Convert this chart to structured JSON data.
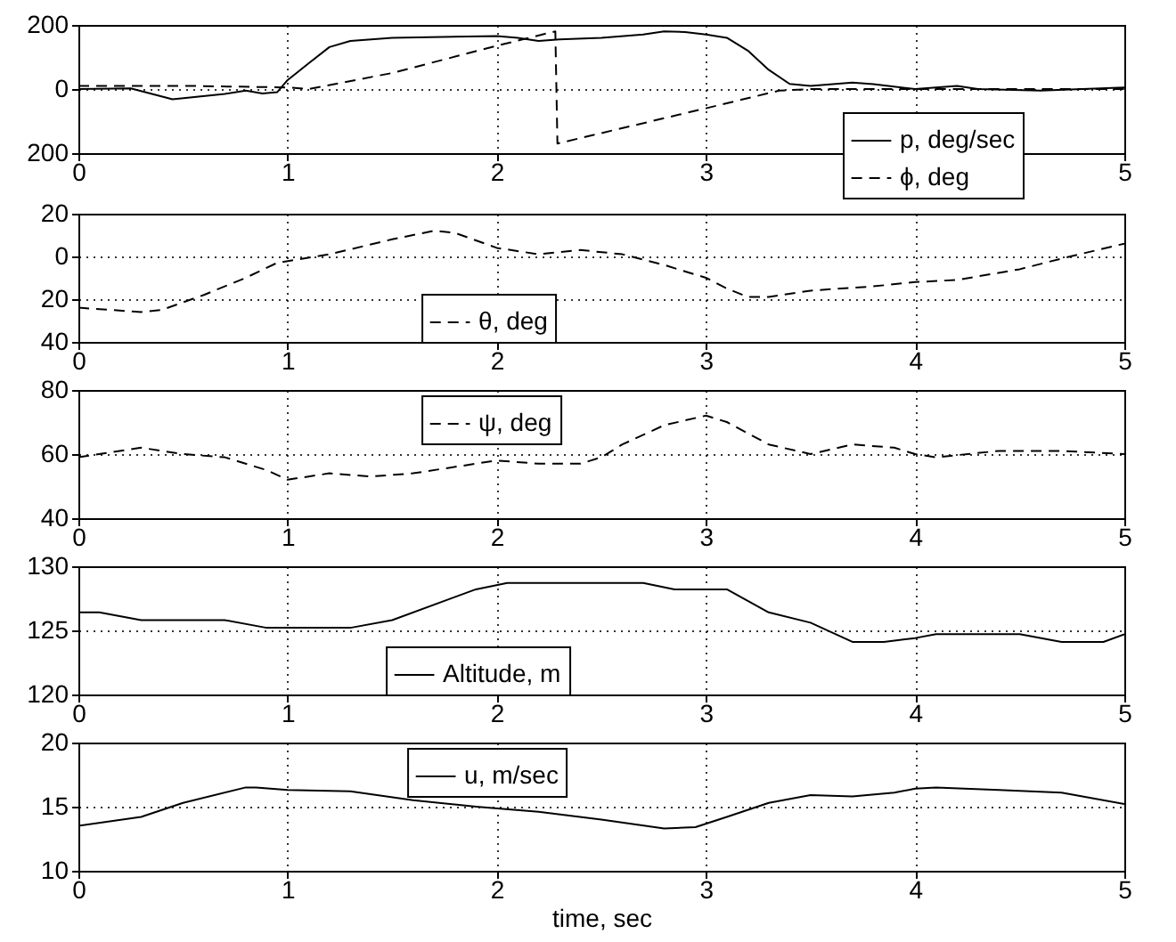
{
  "chart_data": [
    {
      "type": "line",
      "x": [
        0,
        0.25,
        0.45,
        0.7,
        0.8,
        0.88,
        0.95,
        1.0,
        1.1,
        1.2,
        1.3,
        1.5,
        2.0,
        2.1,
        2.2,
        2.3,
        2.5,
        2.7,
        2.8,
        2.9,
        3.0,
        3.1,
        3.2,
        3.3,
        3.4,
        3.5,
        3.7,
        3.8,
        4.0,
        4.2,
        4.3,
        4.6,
        4.8,
        5.0
      ],
      "series": [
        {
          "name": "p, deg/sec",
          "color": "#000000",
          "line_style": "solid",
          "values": [
            0,
            2,
            -32,
            -15,
            -5,
            -14,
            -10,
            28,
            80,
            131,
            150,
            160,
            165,
            160,
            150,
            155,
            160,
            170,
            180,
            178,
            170,
            160,
            120,
            60,
            16,
            10,
            20,
            15,
            0,
            10,
            0,
            -5,
            0,
            5
          ]
        },
        {
          "name": "ϕ, deg",
          "color": "#000000",
          "line_style": "dashed",
          "x": [
            0,
            0.5,
            1.0,
            1.1,
            1.5,
            2.0,
            2.28,
            2.29,
            3.0,
            3.35,
            3.5,
            5.0
          ],
          "values": [
            10,
            10,
            5,
            0,
            50,
            135,
            180,
            -170,
            -60,
            -5,
            0,
            0
          ]
        }
      ],
      "xlim": [
        0,
        5
      ],
      "xticks": [
        0,
        1,
        2,
        3,
        {
          "value": 4,
          "label": null
        },
        5
      ],
      "ylim": [
        -200,
        200
      ],
      "yticks": [
        {
          "value": -200,
          "label": "200"
        },
        0,
        200
      ],
      "grid": true,
      "legend": "bottom right"
    },
    {
      "type": "line",
      "x": [
        0,
        0.3,
        0.4,
        0.6,
        0.8,
        0.95,
        1.2,
        1.5,
        1.7,
        1.8,
        2.0,
        2.2,
        2.4,
        2.6,
        2.8,
        3.0,
        3.1,
        3.2,
        3.3,
        3.5,
        3.8,
        4.0,
        4.2,
        4.5,
        4.7,
        5.0
      ],
      "series": [
        {
          "name": "θ, deg",
          "color": "#000000",
          "line_style": "dashed",
          "values": [
            -24,
            -26,
            -25,
            -18,
            -10,
            -3,
            1,
            8,
            12,
            11,
            4,
            1,
            3,
            1,
            -4,
            -10,
            -15,
            -19,
            -19,
            -16,
            -14,
            -12,
            -11,
            -6,
            -1,
            6
          ]
        }
      ],
      "xlim": [
        0,
        5
      ],
      "xticks": [
        0,
        1,
        2,
        3,
        4,
        5
      ],
      "ylim": [
        -40,
        20
      ],
      "yticks": [
        {
          "value": -40,
          "label": "40"
        },
        {
          "value": -20,
          "label": "20"
        },
        0,
        20
      ],
      "grid": true,
      "legend": "bottom"
    },
    {
      "type": "line",
      "x": [
        0,
        0.3,
        0.5,
        0.7,
        0.9,
        1.0,
        1.2,
        1.4,
        1.6,
        2.0,
        2.2,
        2.4,
        2.5,
        2.6,
        2.8,
        3.0,
        3.1,
        3.3,
        3.5,
        3.7,
        3.9,
        4.0,
        4.1,
        4.4,
        4.7,
        5.0
      ],
      "series": [
        {
          "name": "ψ, deg",
          "color": "#000000",
          "line_style": "dashed",
          "values": [
            59,
            62,
            60,
            59,
            55,
            52,
            54,
            53,
            54,
            58,
            57,
            57,
            59,
            63,
            69,
            72,
            70,
            63,
            60,
            63,
            62,
            60,
            59,
            61,
            61,
            60
          ]
        }
      ],
      "xlim": [
        0,
        5
      ],
      "xticks": [
        0,
        1,
        2,
        3,
        4,
        5
      ],
      "ylim": [
        40,
        80
      ],
      "yticks": [
        40,
        60,
        80
      ],
      "grid": true,
      "legend": "top"
    },
    {
      "type": "line",
      "x": [
        0,
        0.1,
        0.3,
        0.7,
        0.9,
        1.3,
        1.5,
        1.9,
        2.05,
        2.7,
        2.85,
        3.1,
        3.3,
        3.5,
        3.7,
        3.85,
        4.0,
        4.1,
        4.5,
        4.7,
        4.9,
        5.0
      ],
      "series": [
        {
          "name": "Altitude, m",
          "color": "#000000",
          "line_style": "solid",
          "values": [
            126.4,
            126.4,
            125.8,
            125.8,
            125.2,
            125.2,
            125.8,
            128.2,
            128.7,
            128.7,
            128.2,
            128.2,
            126.4,
            125.6,
            124.1,
            124.1,
            124.4,
            124.7,
            124.7,
            124.1,
            124.1,
            124.7
          ]
        }
      ],
      "xlim": [
        0,
        5
      ],
      "xticks": [
        0,
        1,
        2,
        3,
        4,
        5
      ],
      "ylim": [
        120,
        130
      ],
      "yticks": [
        120,
        125,
        130
      ],
      "grid": true,
      "legend": "bottom"
    },
    {
      "type": "line",
      "x": [
        0,
        0.3,
        0.5,
        0.8,
        0.85,
        1.0,
        1.3,
        1.6,
        1.9,
        2.2,
        2.5,
        2.8,
        2.95,
        3.1,
        3.3,
        3.5,
        3.7,
        3.9,
        4.0,
        4.1,
        4.4,
        4.7,
        5.0
      ],
      "series": [
        {
          "name": "u, m/sec",
          "color": "#000000",
          "line_style": "solid",
          "values": [
            13.5,
            14.2,
            15.3,
            16.5,
            16.5,
            16.3,
            16.2,
            15.5,
            15.0,
            14.6,
            14.0,
            13.3,
            13.4,
            14.2,
            15.3,
            15.9,
            15.8,
            16.1,
            16.4,
            16.5,
            16.3,
            16.1,
            15.2
          ]
        }
      ],
      "xlim": [
        0,
        5
      ],
      "xticks": [
        0,
        1,
        2,
        3,
        4,
        5
      ],
      "ylim": [
        10,
        20
      ],
      "yticks": [
        10,
        15,
        20
      ],
      "grid": true,
      "legend": "top",
      "xlabel": "time, sec"
    }
  ]
}
